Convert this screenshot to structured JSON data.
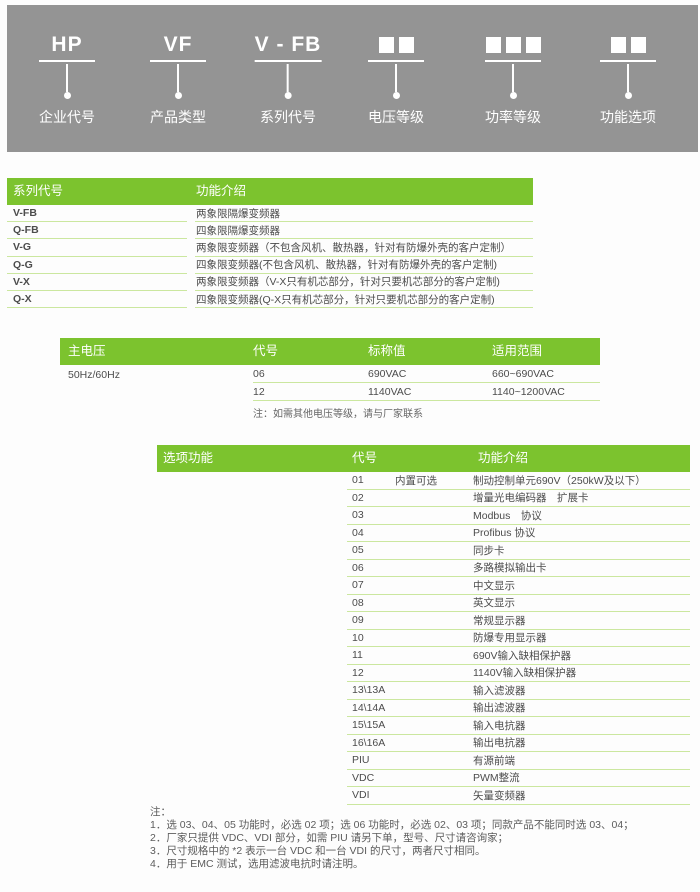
{
  "banner": {
    "items": [
      {
        "type": "text",
        "code": "HP",
        "label": "企业代号"
      },
      {
        "type": "text",
        "code": "VF",
        "label": "产品类型"
      },
      {
        "type": "text",
        "code": "V - FB",
        "label": "系列代号"
      },
      {
        "type": "squares",
        "squares": 2,
        "icon": "voltage-code-boxes-icon",
        "label": "电压等级"
      },
      {
        "type": "squares",
        "squares": 3,
        "icon": "power-code-boxes-icon",
        "label": "功率等级"
      },
      {
        "type": "squares",
        "squares": 2,
        "icon": "option-code-boxes-icon",
        "label": "功能选项"
      }
    ]
  },
  "series_table": {
    "headers": [
      "系列代号",
      "功能介绍"
    ],
    "rows": [
      [
        "V-FB",
        "两象限隔爆变频器"
      ],
      [
        "Q-FB",
        "四象限隔爆变频器"
      ],
      [
        "V-G",
        "两象限变频器（不包含风机、散热器，针对有防爆外壳的客户定制）"
      ],
      [
        "Q-G",
        "四象限变频器(不包含风机、散热器，针对有防爆外壳的客户定制)"
      ],
      [
        "V-X",
        "两象限变频器（V-X只有机芯部分，针对只要机芯部分的客户定制)"
      ],
      [
        "Q-X",
        "四象限变频器(Q-X只有机芯部分，针对只要机芯部分的客户定制)"
      ]
    ]
  },
  "voltage_table": {
    "headers": [
      "主电压",
      "代号",
      "标称值",
      "适用范围"
    ],
    "main_voltage": "50Hz/60Hz",
    "rows": [
      [
        "06",
        "690VAC",
        "660~690VAC"
      ],
      [
        "12",
        "1140VAC",
        "1140~1200VAC"
      ]
    ],
    "note": "注：如需其他电压等级，请与厂家联系"
  },
  "options_table": {
    "headers": [
      "选项功能",
      "代号",
      "功能介绍"
    ],
    "builtin_label": "内置可选",
    "rows": [
      {
        "code": "01",
        "desc": "制动控制单元690V（250kW及以下）",
        "builtin": true
      },
      {
        "code": "02",
        "desc": "增量光电编码器　扩展卡"
      },
      {
        "code": "03",
        "desc": "Modbus　协议"
      },
      {
        "code": "04",
        "desc": "Profibus 协议"
      },
      {
        "code": "05",
        "desc": "同步卡"
      },
      {
        "code": "06",
        "desc": "多路模拟输出卡"
      },
      {
        "code": "07",
        "desc": "中文显示"
      },
      {
        "code": "08",
        "desc": "英文显示"
      },
      {
        "code": "09",
        "desc": "常规显示器"
      },
      {
        "code": "10",
        "desc": "防爆专用显示器"
      },
      {
        "code": "11",
        "desc": "690V输入缺相保护器"
      },
      {
        "code": "12",
        "desc": "1140V输入缺相保护器"
      },
      {
        "code": "13\\13A",
        "desc": "输入滤波器"
      },
      {
        "code": "14\\14A",
        "desc": "输出滤波器"
      },
      {
        "code": "15\\15A",
        "desc": "输入电抗器"
      },
      {
        "code": "16\\16A",
        "desc": "输出电抗器"
      },
      {
        "code": "PIU",
        "desc": "有源前端"
      },
      {
        "code": "VDC",
        "desc": "PWM整流"
      },
      {
        "code": "VDI",
        "desc": "矢量变频器"
      }
    ]
  },
  "footnotes": {
    "title": "注：",
    "items": [
      "1．选 03、04、05 功能时，必选 02 项；选 06 功能时，必选 02、03 项；同款产品不能同时选 03、04；",
      "2．厂家只提供 VDC、VDI 部分，如需 PIU 请另下单，型号、尺寸请咨询家；",
      "3．尺寸规格中的 *2 表示一台 VDC 和一台 VDI 的尺寸，两者尺寸相同。",
      "4．用于 EMC 测试，选用滤波电抗时请注明。"
    ]
  },
  "colors": {
    "header_green": "#7cc32e",
    "separator_green": "#cbe79f",
    "banner_gray": "#949494"
  }
}
